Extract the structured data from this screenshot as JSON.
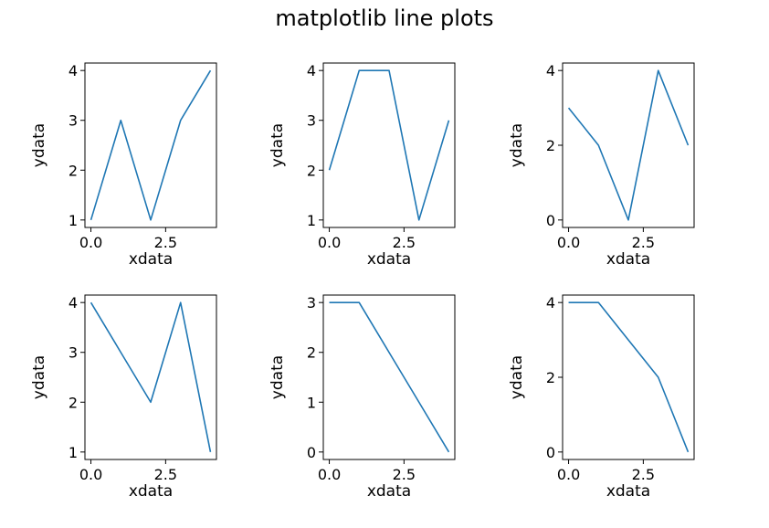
{
  "figure": {
    "title": "matplotlib  line plots"
  },
  "chart_data": [
    {
      "type": "line",
      "x": [
        0,
        1,
        2,
        3,
        4
      ],
      "series": [
        {
          "values": [
            1,
            3,
            1,
            3,
            4
          ],
          "color": "#1f77b4"
        }
      ],
      "xlabel": "xdata",
      "ylabel": "ydata",
      "xlim": [
        -0.2,
        4.2
      ],
      "ylim": [
        0.85,
        4.15
      ],
      "xticks": [
        0,
        2.5
      ],
      "xtick_labels": [
        "0.0",
        "2.5"
      ],
      "yticks": [
        1,
        2,
        3,
        4
      ],
      "ytick_labels": [
        "1",
        "2",
        "3",
        "4"
      ],
      "grid": false
    },
    {
      "type": "line",
      "x": [
        0,
        1,
        2,
        3,
        4
      ],
      "series": [
        {
          "values": [
            2,
            4,
            4,
            1,
            3
          ],
          "color": "#1f77b4"
        }
      ],
      "xlabel": "xdata",
      "ylabel": "ydata",
      "xlim": [
        -0.2,
        4.2
      ],
      "ylim": [
        0.85,
        4.15
      ],
      "xticks": [
        0,
        2.5
      ],
      "xtick_labels": [
        "0.0",
        "2.5"
      ],
      "yticks": [
        1,
        2,
        3,
        4
      ],
      "ytick_labels": [
        "1",
        "2",
        "3",
        "4"
      ],
      "grid": false
    },
    {
      "type": "line",
      "x": [
        0,
        1,
        2,
        3,
        4
      ],
      "series": [
        {
          "values": [
            3,
            2,
            0,
            4,
            2
          ],
          "color": "#1f77b4"
        }
      ],
      "xlabel": "xdata",
      "ylabel": "ydata",
      "xlim": [
        -0.2,
        4.2
      ],
      "ylim": [
        -0.2,
        4.2
      ],
      "xticks": [
        0,
        2.5
      ],
      "xtick_labels": [
        "0.0",
        "2.5"
      ],
      "yticks": [
        0,
        2,
        4
      ],
      "ytick_labels": [
        "0",
        "2",
        "4"
      ],
      "grid": false
    },
    {
      "type": "line",
      "x": [
        0,
        1,
        2,
        3,
        4
      ],
      "series": [
        {
          "values": [
            4,
            3,
            2,
            4,
            1
          ],
          "color": "#1f77b4"
        }
      ],
      "xlabel": "xdata",
      "ylabel": "ydata",
      "xlim": [
        -0.2,
        4.2
      ],
      "ylim": [
        0.85,
        4.15
      ],
      "xticks": [
        0,
        2.5
      ],
      "xtick_labels": [
        "0.0",
        "2.5"
      ],
      "yticks": [
        1,
        2,
        3,
        4
      ],
      "ytick_labels": [
        "1",
        "2",
        "3",
        "4"
      ],
      "grid": false
    },
    {
      "type": "line",
      "x": [
        0,
        1,
        2,
        3,
        4
      ],
      "series": [
        {
          "values": [
            3,
            3,
            2,
            1,
            0
          ],
          "color": "#1f77b4"
        }
      ],
      "xlabel": "xdata",
      "ylabel": "ydata",
      "xlim": [
        -0.2,
        4.2
      ],
      "ylim": [
        -0.15,
        3.15
      ],
      "xticks": [
        0,
        2.5
      ],
      "xtick_labels": [
        "0.0",
        "2.5"
      ],
      "yticks": [
        0,
        1,
        2,
        3
      ],
      "ytick_labels": [
        "0",
        "1",
        "2",
        "3"
      ],
      "grid": false
    },
    {
      "type": "line",
      "x": [
        0,
        1,
        2,
        3,
        4
      ],
      "series": [
        {
          "values": [
            4,
            4,
            3,
            2,
            0
          ],
          "color": "#1f77b4"
        }
      ],
      "xlabel": "xdata",
      "ylabel": "ydata",
      "xlim": [
        -0.2,
        4.2
      ],
      "ylim": [
        -0.2,
        4.2
      ],
      "xticks": [
        0,
        2.5
      ],
      "xtick_labels": [
        "0.0",
        "2.5"
      ],
      "yticks": [
        0,
        2,
        4
      ],
      "ytick_labels": [
        "0",
        "2",
        "4"
      ],
      "grid": false
    }
  ]
}
